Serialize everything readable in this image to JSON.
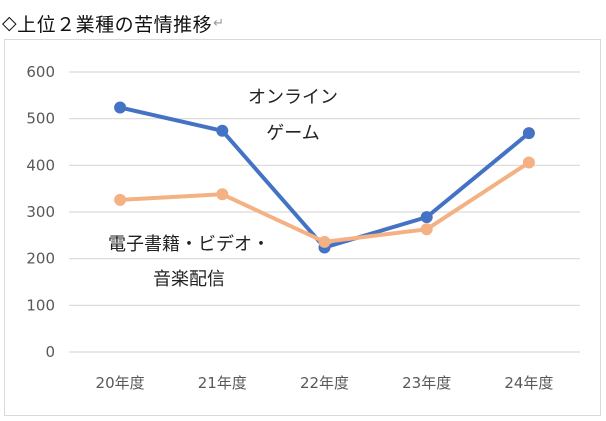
{
  "heading": {
    "diamond": "◇",
    "text": "上位２業種の苦情推移",
    "return_mark": "↵"
  },
  "chart_data": {
    "type": "line",
    "title": "",
    "xlabel": "",
    "ylabel": "",
    "categories": [
      "20年度",
      "21年度",
      "22年度",
      "23年度",
      "24年度"
    ],
    "ylim": [
      0,
      600
    ],
    "yticks": [
      "0",
      "100",
      "200",
      "300",
      "400",
      "500",
      "600"
    ],
    "grid": true,
    "legend": "none",
    "series": [
      {
        "name": "オンラインゲーム",
        "color": "#4472c4",
        "values": [
          524,
          474,
          224,
          289,
          469
        ]
      },
      {
        "name": "電子書籍・ビデオ・音楽配信",
        "color": "#f4b183",
        "values": [
          326,
          338,
          236,
          263,
          406
        ]
      }
    ],
    "annotations": [
      {
        "series": 0,
        "lines": [
          "オンライン",
          "ゲーム"
        ]
      },
      {
        "series": 1,
        "lines": [
          "電子書籍・ビデオ・",
          "音楽配信"
        ]
      }
    ]
  }
}
